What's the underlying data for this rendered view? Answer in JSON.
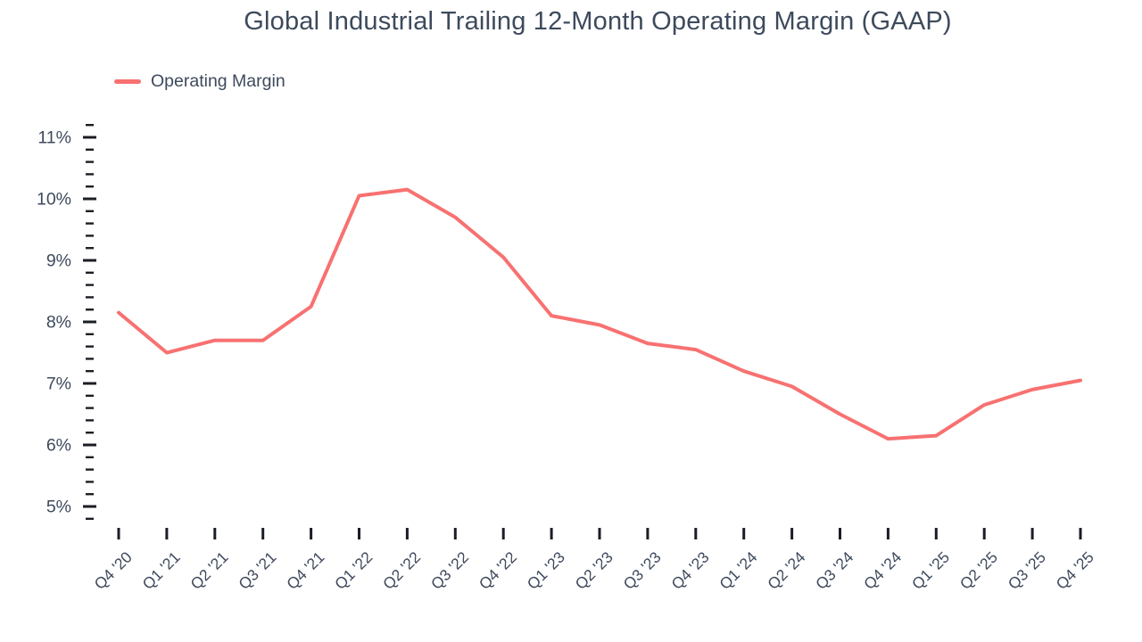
{
  "header": {
    "title": "Global Industrial Trailing 12-Month Operating Margin (GAAP)"
  },
  "colors": {
    "line": "#F87171",
    "text": "#3D4A5C",
    "tick": "#1B1E24",
    "background": "#FFFFFF"
  },
  "legend": {
    "items": [
      {
        "label": "Operating Margin",
        "color": "#F87171",
        "marker": "line"
      }
    ],
    "position": "top-left"
  },
  "chart_data": {
    "type": "line",
    "title": "Global Industrial Trailing 12-Month Operating Margin (GAAP)",
    "xlabel": "",
    "ylabel": "",
    "grid": false,
    "legend_position": "top-left",
    "categories": [
      "Q4 '20",
      "Q1 '21",
      "Q2 '21",
      "Q3 '21",
      "Q4 '21",
      "Q1 '22",
      "Q2 '22",
      "Q3 '22",
      "Q4 '22",
      "Q1 '23",
      "Q2 '23",
      "Q3 '23",
      "Q4 '23",
      "Q1 '24",
      "Q2 '24",
      "Q3 '24",
      "Q4 '24",
      "Q1 '25",
      "Q2 '25",
      "Q3 '25",
      "Q4 '25"
    ],
    "series": [
      {
        "name": "Operating Margin",
        "color": "#F87171",
        "unit": "%",
        "values": [
          8.15,
          7.5,
          7.7,
          7.7,
          8.25,
          10.05,
          10.15,
          9.7,
          9.05,
          8.1,
          7.95,
          7.65,
          7.55,
          7.2,
          6.95,
          6.5,
          6.1,
          6.15,
          6.65,
          6.9,
          7.05
        ]
      }
    ],
    "y_axis": {
      "unit": "%",
      "min": 4.8,
      "max": 11.2,
      "major_tick_step": 1,
      "minor_tick_step": 0.2,
      "labels": [
        "5%",
        "6%",
        "7%",
        "8%",
        "9%",
        "10%",
        "11%"
      ]
    }
  }
}
